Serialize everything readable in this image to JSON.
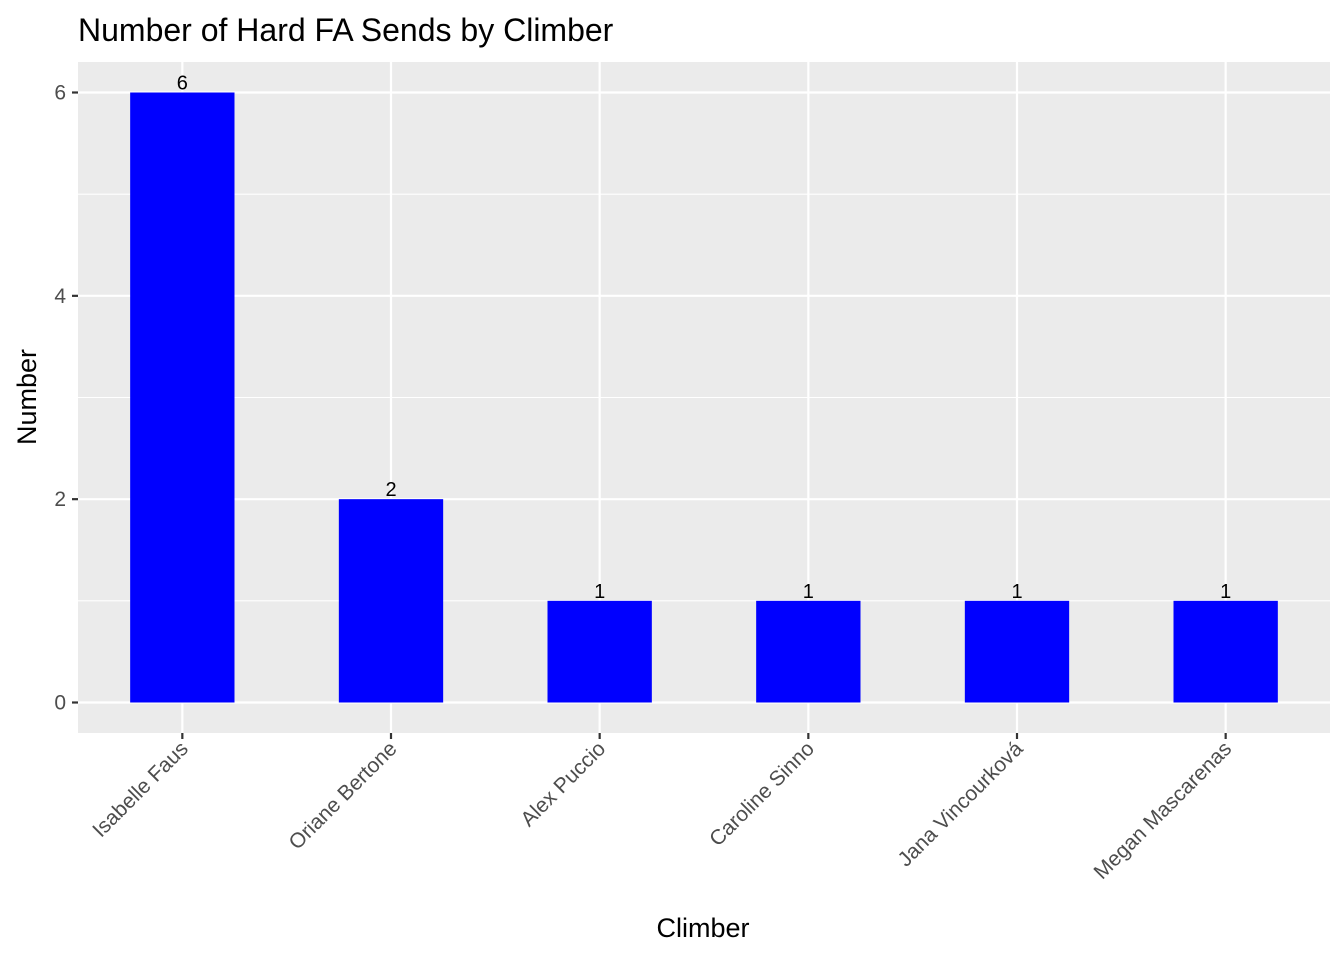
{
  "chart_data": {
    "type": "bar",
    "title": "Number of Hard FA Sends by Climber",
    "xlabel": "Climber",
    "ylabel": "Number",
    "categories": [
      "Isabelle Faus",
      "Oriane Bertone",
      "Alex Puccio",
      "Caroline Sinno",
      "Jana Vincourková",
      "Megan Mascarenas"
    ],
    "values": [
      6,
      2,
      1,
      1,
      1,
      1
    ],
    "ylim": [
      -0.3,
      6.3
    ],
    "yticks": [
      0,
      2,
      4,
      6
    ],
    "ytick_labels": [
      "0",
      "2",
      "4",
      "6"
    ],
    "grid": true,
    "legend": "none",
    "colors": {
      "bar": "#0000ff",
      "panel": "#ebebeb",
      "grid": "#ffffff"
    }
  }
}
